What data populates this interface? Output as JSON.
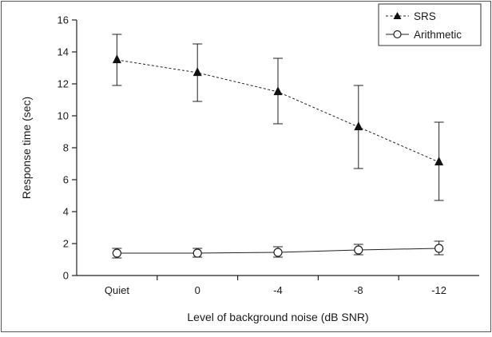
{
  "chart_data": {
    "type": "line",
    "categories": [
      "Quiet",
      "0",
      "-4",
      "-8",
      "-12"
    ],
    "xlabel": "Level of background noise (dB SNR)",
    "ylabel": "Response time (sec)",
    "ylim": [
      0,
      16
    ],
    "yticks": [
      0,
      2,
      4,
      6,
      8,
      10,
      12,
      14,
      16
    ],
    "grid": false,
    "legend_position": "top-right",
    "series": [
      {
        "name": "SRS",
        "marker": "filled-triangle",
        "line_style": "dashed",
        "values": [
          13.5,
          12.7,
          11.5,
          9.3,
          7.1
        ],
        "error_low": [
          11.9,
          10.9,
          9.5,
          6.7,
          4.7
        ],
        "error_high": [
          15.1,
          14.5,
          13.6,
          11.9,
          9.6
        ]
      },
      {
        "name": "Arithmetic",
        "marker": "open-circle",
        "line_style": "solid",
        "values": [
          1.4,
          1.4,
          1.45,
          1.6,
          1.7
        ],
        "error_low": [
          1.1,
          1.15,
          1.15,
          1.3,
          1.3
        ],
        "error_high": [
          1.7,
          1.7,
          1.8,
          1.95,
          2.15
        ]
      }
    ],
    "colors": {
      "line": "#222222",
      "frame": "#555555",
      "background": "#ffffff"
    }
  }
}
